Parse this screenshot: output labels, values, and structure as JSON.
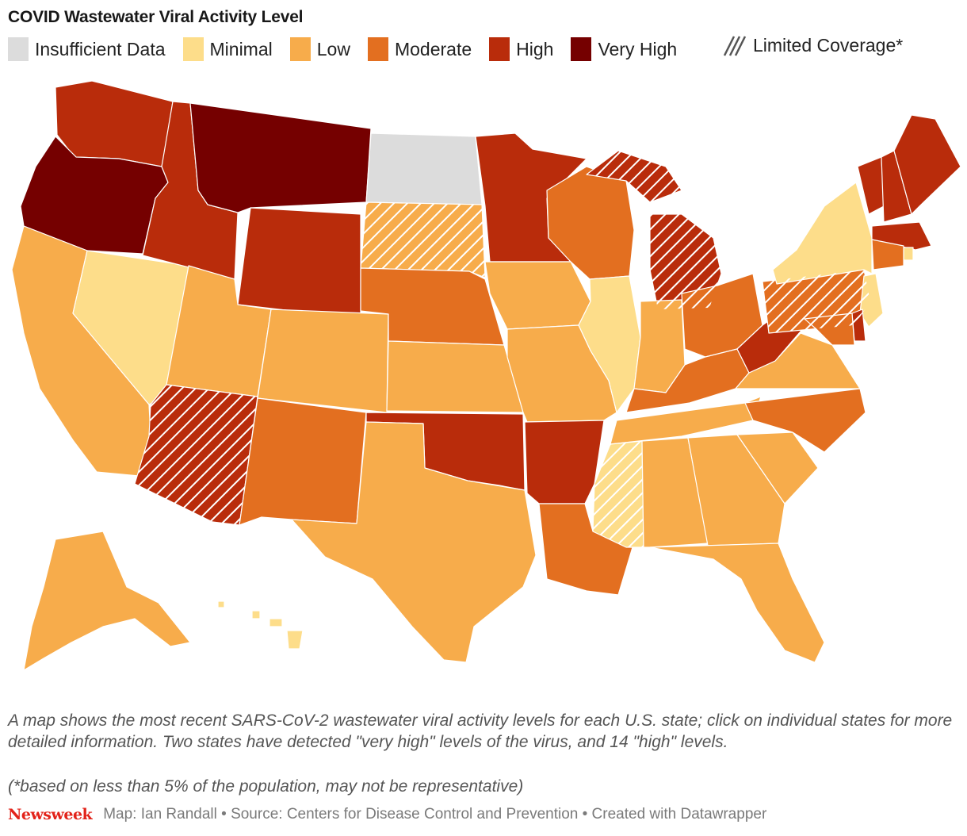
{
  "title": "COVID Wastewater Viral Activity Level",
  "legend": [
    {
      "label": "Insufficient Data",
      "color": "#dcdcdc"
    },
    {
      "label": "Minimal",
      "color": "#fddd8a"
    },
    {
      "label": "Low",
      "color": "#f7ac4b"
    },
    {
      "label": "Moderate",
      "color": "#e36f20"
    },
    {
      "label": "High",
      "color": "#b92c0b"
    },
    {
      "label": "Very High",
      "color": "#750000"
    }
  ],
  "legend_hatch": {
    "label": "Limited Coverage*"
  },
  "description": "A map shows the most recent SARS-CoV-2 wastewater viral activity levels for each U.S. state; click on individual states for more detailed information. Two states have detected \"very high\" levels of the virus, and 14 \"high\" levels.",
  "note": "(*based on less than 5% of the population, may not be representative)",
  "footer": {
    "brand": "Newsweek",
    "credit": "Map: Ian Randall • Source: Centers for Disease Control and Prevention • Created with Datawrapper"
  },
  "colors": {
    "insufficient": "#dcdcdc",
    "minimal": "#fddd8a",
    "low": "#f7ac4b",
    "moderate": "#e36f20",
    "high": "#b92c0b",
    "very_high": "#750000"
  },
  "states": [
    {
      "name": "Washington",
      "level": "high"
    },
    {
      "name": "Oregon",
      "level": "very_high"
    },
    {
      "name": "California",
      "level": "low"
    },
    {
      "name": "Nevada",
      "level": "minimal"
    },
    {
      "name": "Idaho",
      "level": "high"
    },
    {
      "name": "Montana",
      "level": "very_high"
    },
    {
      "name": "Wyoming",
      "level": "high"
    },
    {
      "name": "Utah",
      "level": "low"
    },
    {
      "name": "Arizona",
      "level": "high",
      "limited": true
    },
    {
      "name": "Colorado",
      "level": "low"
    },
    {
      "name": "New Mexico",
      "level": "moderate"
    },
    {
      "name": "North Dakota",
      "level": "insufficient"
    },
    {
      "name": "South Dakota",
      "level": "low",
      "limited": true
    },
    {
      "name": "Nebraska",
      "level": "moderate"
    },
    {
      "name": "Kansas",
      "level": "low"
    },
    {
      "name": "Oklahoma",
      "level": "high"
    },
    {
      "name": "Texas",
      "level": "low"
    },
    {
      "name": "Minnesota",
      "level": "high"
    },
    {
      "name": "Iowa",
      "level": "low"
    },
    {
      "name": "Missouri",
      "level": "low"
    },
    {
      "name": "Arkansas",
      "level": "high"
    },
    {
      "name": "Louisiana",
      "level": "moderate"
    },
    {
      "name": "Wisconsin",
      "level": "moderate"
    },
    {
      "name": "Illinois",
      "level": "minimal"
    },
    {
      "name": "Michigan",
      "level": "high",
      "limited": true
    },
    {
      "name": "Indiana",
      "level": "low"
    },
    {
      "name": "Ohio",
      "level": "moderate"
    },
    {
      "name": "Kentucky",
      "level": "moderate"
    },
    {
      "name": "Tennessee",
      "level": "low"
    },
    {
      "name": "Mississippi",
      "level": "minimal",
      "limited": true
    },
    {
      "name": "Alabama",
      "level": "low"
    },
    {
      "name": "Georgia",
      "level": "low"
    },
    {
      "name": "Florida",
      "level": "low"
    },
    {
      "name": "South Carolina",
      "level": "low"
    },
    {
      "name": "North Carolina",
      "level": "moderate"
    },
    {
      "name": "Virginia",
      "level": "low"
    },
    {
      "name": "West Virginia",
      "level": "high"
    },
    {
      "name": "Pennsylvania",
      "level": "moderate",
      "limited": true
    },
    {
      "name": "New York",
      "level": "minimal"
    },
    {
      "name": "Vermont",
      "level": "high"
    },
    {
      "name": "New Hampshire",
      "level": "high"
    },
    {
      "name": "Maine",
      "level": "high"
    },
    {
      "name": "Massachusetts",
      "level": "high"
    },
    {
      "name": "Rhode Island",
      "level": "minimal"
    },
    {
      "name": "Connecticut",
      "level": "moderate"
    },
    {
      "name": "New Jersey",
      "level": "minimal"
    },
    {
      "name": "Delaware",
      "level": "high"
    },
    {
      "name": "Maryland",
      "level": "moderate"
    },
    {
      "name": "Alaska",
      "level": "low"
    },
    {
      "name": "Hawaii",
      "level": "minimal"
    }
  ]
}
